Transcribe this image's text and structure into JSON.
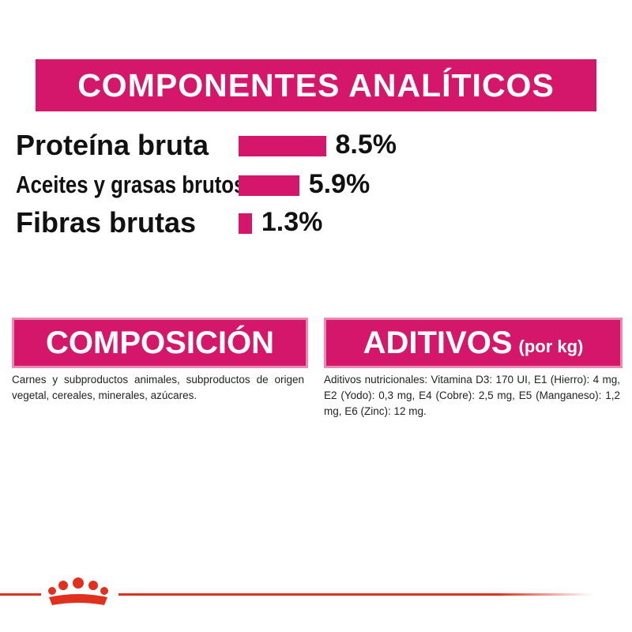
{
  "chart_data": {
    "type": "bar",
    "title": "COMPONENTES ANALÍTICOS",
    "categories": [
      "Proteína bruta",
      "Aceites y grasas brutos",
      "Fibras brutas"
    ],
    "values": [
      8.5,
      5.9,
      1.3
    ],
    "value_labels": [
      "8.5%",
      "5.9%",
      "1.3%"
    ],
    "color": "#d4176b"
  },
  "composition": {
    "title": "COMPOSICIÓN",
    "text": "Carnes y subproductos animales, subproductos de origen vegetal, cereales, minerales, azúcares."
  },
  "additives": {
    "title": "ADITIVOS",
    "subtitle": "(por kg)",
    "text": "Aditivos nutricionales: Vitamina D3: 170 UI, E1 (Hierro): 4 mg, E2 (Yodo): 0,3 mg, E4 (Cobre): 2,5 mg, E5 (Manganeso): 1,2 mg, E6 (Zinc): 12 mg."
  }
}
